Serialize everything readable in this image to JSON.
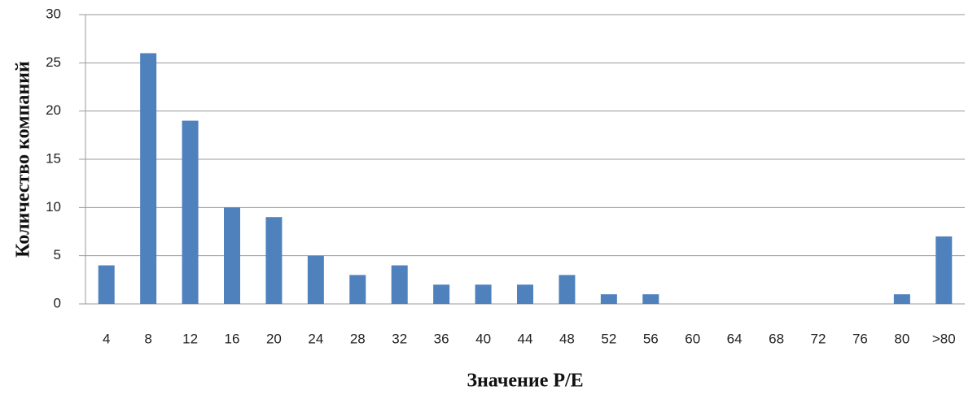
{
  "chart_data": {
    "type": "bar",
    "x_label": "Значение P/E",
    "y_label": "Количество компаний",
    "categories": [
      "4",
      "8",
      "12",
      "16",
      "20",
      "24",
      "28",
      "32",
      "36",
      "40",
      "44",
      "48",
      "52",
      "56",
      "60",
      "64",
      "68",
      "72",
      "76",
      "80",
      ">80"
    ],
    "values": [
      4,
      26,
      19,
      10,
      9,
      5,
      3,
      4,
      2,
      2,
      2,
      3,
      1,
      1,
      0,
      0,
      0,
      0,
      0,
      1,
      7
    ],
    "color": "#4f81bd",
    "ylim": [
      0,
      30
    ],
    "yticks": [
      0,
      5,
      10,
      15,
      20,
      25,
      30
    ],
    "grid": true
  }
}
